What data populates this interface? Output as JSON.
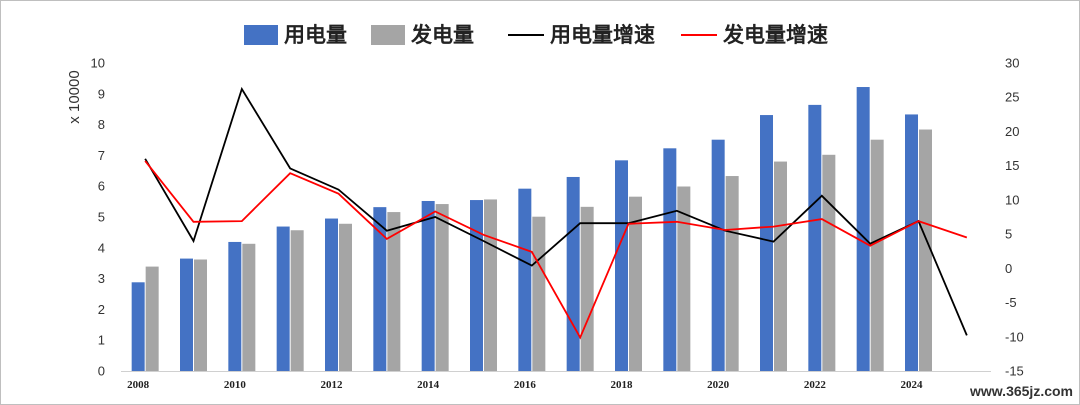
{
  "chart_data": {
    "type": "bar",
    "x": [
      2008,
      2009,
      2010,
      2011,
      2012,
      2013,
      2014,
      2015,
      2016,
      2017,
      2018,
      2019,
      2020,
      2021,
      2022,
      2023,
      2024,
      2025
    ],
    "x_tick_labels": [
      "2008",
      "2010",
      "2012",
      "2014",
      "2016",
      "2018",
      "2020",
      "2022",
      "2024"
    ],
    "y_left_label": "x 10000",
    "y_left_range": [
      0,
      10
    ],
    "y_left_ticks": [
      "0",
      "1",
      "2",
      "3",
      "4",
      "5",
      "6",
      "7",
      "8",
      "9",
      "10"
    ],
    "y_right_range": [
      -15,
      30
    ],
    "y_right_ticks": [
      "-15",
      "-10",
      "-5",
      "0",
      "5",
      "10",
      "15",
      "20",
      "25",
      "30"
    ],
    "legend_position": "top",
    "grid": false,
    "series": [
      {
        "name": "用电量",
        "type": "bar",
        "axis": "left",
        "color": "#4472C4",
        "values": [
          2.88,
          3.65,
          4.19,
          4.69,
          4.95,
          5.32,
          5.52,
          5.55,
          5.92,
          6.3,
          6.84,
          7.23,
          7.51,
          8.31,
          8.64,
          9.22,
          8.33,
          null
        ]
      },
      {
        "name": "发电量",
        "type": "bar",
        "axis": "left",
        "color": "#A5A5A5",
        "values": [
          3.39,
          3.62,
          4.13,
          4.57,
          4.78,
          5.16,
          5.42,
          5.57,
          5.01,
          5.33,
          5.66,
          5.99,
          6.33,
          6.8,
          7.02,
          7.51,
          7.84,
          null
        ]
      },
      {
        "name": "用电量增速",
        "type": "line",
        "axis": "right",
        "color": "#000000",
        "values": [
          16.0,
          4.0,
          26.2,
          14.6,
          11.5,
          5.5,
          7.5,
          4.0,
          0.4,
          6.6,
          6.6,
          8.4,
          5.5,
          3.9,
          10.6,
          3.6,
          6.9,
          -9.8
        ]
      },
      {
        "name": "发电量增速",
        "type": "line",
        "axis": "right",
        "color": "#FF0000",
        "values": [
          15.7,
          6.8,
          6.9,
          13.9,
          10.9,
          4.3,
          8.3,
          4.9,
          2.4,
          -10.1,
          6.5,
          6.8,
          5.6,
          6.1,
          7.2,
          3.3,
          6.9,
          4.5
        ]
      }
    ]
  },
  "watermark": "www.365jz.com"
}
